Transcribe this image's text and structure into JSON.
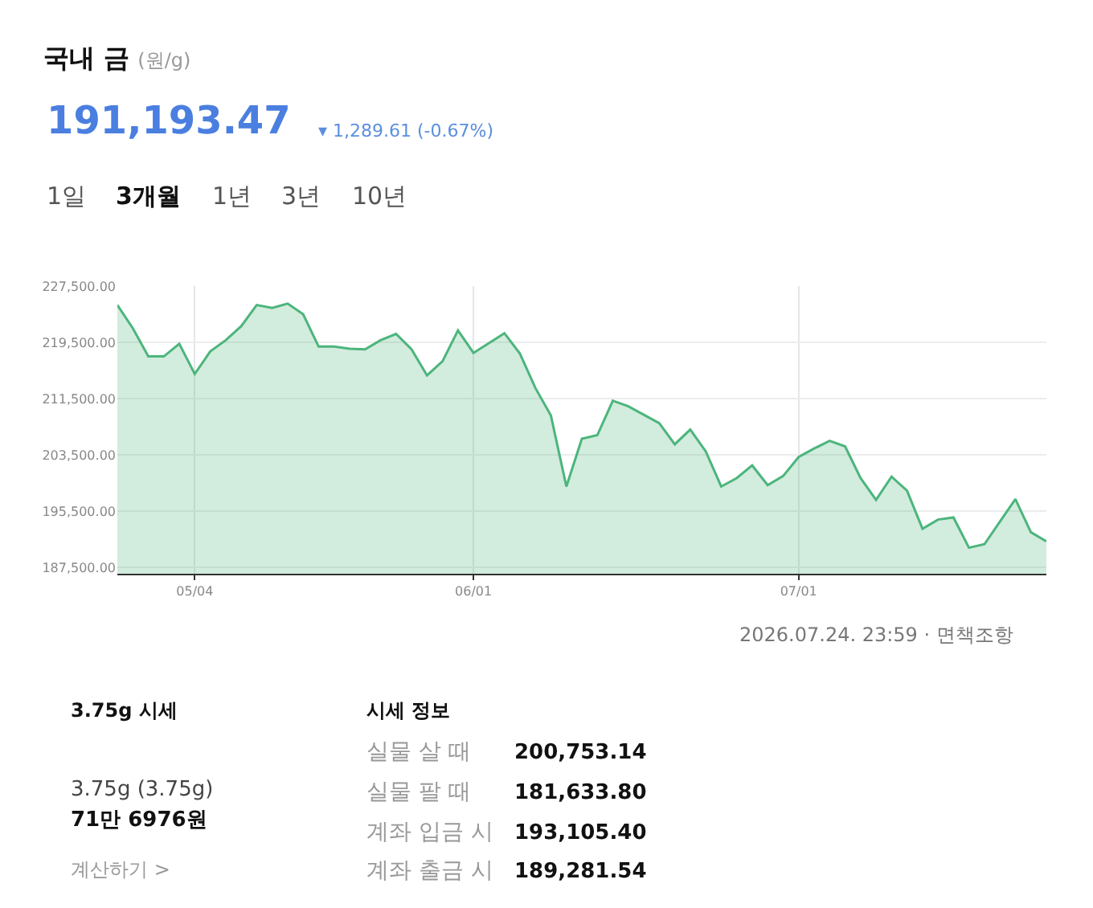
{
  "chart_data": {
    "type": "area",
    "title": "국내 금",
    "subtitle": "(원/g)",
    "categories": [
      null,
      null,
      null,
      null,
      null,
      "05/04",
      null,
      null,
      null,
      null,
      null,
      null,
      null,
      null,
      null,
      null,
      null,
      null,
      null,
      null,
      null,
      null,
      null,
      "06/01",
      null,
      null,
      null,
      null,
      null,
      null,
      null,
      null,
      null,
      null,
      null,
      null,
      null,
      null,
      null,
      null,
      null,
      null,
      null,
      null,
      "07/01",
      null,
      null,
      null,
      null,
      null,
      null,
      null,
      null,
      null,
      null,
      null,
      null,
      null,
      null,
      null,
      null
    ],
    "series": [
      {
        "color": "#4cb57c",
        "values": [
          224800,
          221500,
          217500,
          217500,
          219300,
          215000,
          218200,
          219800,
          221800,
          224800,
          224400,
          225000,
          223500,
          218900,
          218900,
          218600,
          218500,
          219800,
          220700,
          218500,
          214800,
          216800,
          221200,
          218000,
          219400,
          220800,
          217900,
          213000,
          209100,
          199000,
          205800,
          206300,
          211200,
          210400,
          209200,
          208000,
          205000,
          207100,
          204000,
          199000,
          200200,
          202000,
          199200,
          200500,
          203200,
          204400,
          205500,
          204700,
          200200,
          197100,
          200400,
          198400,
          193000,
          194300,
          194600,
          190300,
          190800,
          194000,
          197200,
          192500,
          191200
        ]
      }
    ],
    "ylim": [
      186600,
      227500
    ],
    "yticks": [
      {
        "value": 187500,
        "label": "187,500.00"
      },
      {
        "value": 195500,
        "label": "195,500.00"
      },
      {
        "value": 203500,
        "label": "203,500.00"
      },
      {
        "value": 211500,
        "label": "211,500.00"
      },
      {
        "value": 219500,
        "label": "219,500.00"
      },
      {
        "value": 227500,
        "label": "227,500.00"
      }
    ],
    "grid": true,
    "marker": "none",
    "line_style": "solid",
    "annotations": [
      "191,193.47",
      "▾ 1,289.61 (-0.67%)",
      "1일",
      "3개월",
      "1년",
      "3년",
      "10년",
      "2026.07.24. 23:59 · 면책조항",
      "3.75g 시세",
      "3.75g (3.75g)",
      "71만 6976원",
      "계산하기 >",
      "시세 정보",
      "실물 살 때",
      "200,753.14",
      "실물 팔 때",
      "181,633.80",
      "계좌 입금 시",
      "193,105.40",
      "계좌 출금 시",
      "189,281.54"
    ]
  }
}
